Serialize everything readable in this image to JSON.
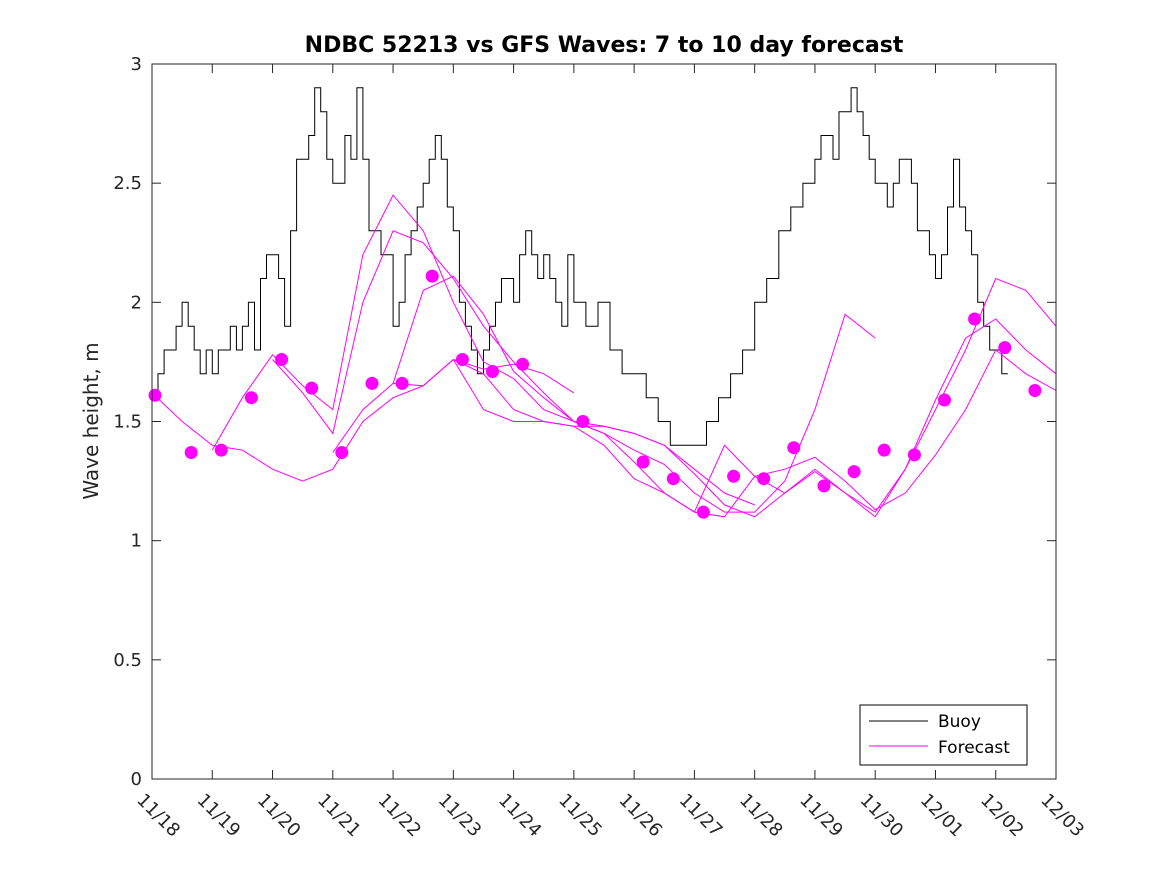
{
  "chart_data": {
    "type": "line",
    "title": "NDBC 52213 vs GFS Waves: 7 to 10 day forecast",
    "xlabel": "",
    "ylabel": "Wave height, m",
    "xlim": [
      0,
      15
    ],
    "ylim": [
      0,
      3
    ],
    "x_tick_labels": [
      "11/18",
      "11/19",
      "11/20",
      "11/21",
      "11/22",
      "11/23",
      "11/24",
      "11/25",
      "11/26",
      "11/27",
      "11/28",
      "11/29",
      "11/30",
      "12/01",
      "12/02",
      "12/03"
    ],
    "y_ticks": [
      0,
      0.5,
      1,
      1.5,
      2,
      2.5,
      3
    ],
    "y_tick_labels": [
      "0",
      "0.5",
      "1",
      "1.5",
      "2",
      "2.5",
      "3"
    ],
    "legend": {
      "position": "bottom-right",
      "entries": [
        "Buoy",
        "Forecast"
      ]
    },
    "colors": {
      "buoy": "#000000",
      "forecast": "#ff00ff"
    },
    "series": [
      {
        "name": "Buoy",
        "x": [
          0,
          0.1,
          0.2,
          0.3,
          0.4,
          0.5,
          0.6,
          0.7,
          0.8,
          0.9,
          1.0,
          1.1,
          1.2,
          1.3,
          1.4,
          1.5,
          1.6,
          1.7,
          1.8,
          1.9,
          2.0,
          2.1,
          2.2,
          2.3,
          2.4,
          2.5,
          2.6,
          2.7,
          2.8,
          2.9,
          3.0,
          3.1,
          3.2,
          3.3,
          3.4,
          3.5,
          3.6,
          3.7,
          3.8,
          3.9,
          4.0,
          4.1,
          4.2,
          4.3,
          4.4,
          4.5,
          4.6,
          4.7,
          4.8,
          4.9,
          5.0,
          5.1,
          5.2,
          5.3,
          5.4,
          5.5,
          5.6,
          5.7,
          5.8,
          5.9,
          6.0,
          6.1,
          6.2,
          6.3,
          6.4,
          6.5,
          6.6,
          6.7,
          6.8,
          6.9,
          7.0,
          7.2,
          7.4,
          7.6,
          7.8,
          8.0,
          8.2,
          8.4,
          8.6,
          8.8,
          9.0,
          9.2,
          9.4,
          9.6,
          9.8,
          10.0,
          10.2,
          10.4,
          10.6,
          10.8,
          11.0,
          11.1,
          11.2,
          11.3,
          11.4,
          11.5,
          11.6,
          11.7,
          11.8,
          11.9,
          12.0,
          12.1,
          12.2,
          12.3,
          12.4,
          12.5,
          12.6,
          12.7,
          12.8,
          12.9,
          13.0,
          13.1,
          13.2,
          13.3,
          13.4,
          13.5,
          13.6,
          13.7,
          13.8,
          13.9,
          14.0,
          14.1,
          14.2
        ],
        "values": [
          1.6,
          1.7,
          1.8,
          1.8,
          1.9,
          2.0,
          1.9,
          1.8,
          1.7,
          1.8,
          1.7,
          1.8,
          1.8,
          1.9,
          1.8,
          1.9,
          2.0,
          1.8,
          2.1,
          2.2,
          2.2,
          2.1,
          1.9,
          2.3,
          2.6,
          2.6,
          2.7,
          2.9,
          2.8,
          2.6,
          2.5,
          2.5,
          2.7,
          2.6,
          2.9,
          2.6,
          2.3,
          2.3,
          2.2,
          2.2,
          1.9,
          2.0,
          2.2,
          2.3,
          2.4,
          2.5,
          2.6,
          2.7,
          2.6,
          2.4,
          2.3,
          2.0,
          1.9,
          1.8,
          1.7,
          1.8,
          1.9,
          2.0,
          2.1,
          2.1,
          2.0,
          2.2,
          2.3,
          2.2,
          2.1,
          2.2,
          2.1,
          2.0,
          1.9,
          2.2,
          2.0,
          1.9,
          2.0,
          1.8,
          1.7,
          1.7,
          1.6,
          1.5,
          1.4,
          1.4,
          1.4,
          1.5,
          1.6,
          1.7,
          1.8,
          2.0,
          2.1,
          2.3,
          2.4,
          2.5,
          2.6,
          2.7,
          2.7,
          2.6,
          2.8,
          2.8,
          2.9,
          2.8,
          2.7,
          2.6,
          2.5,
          2.5,
          2.4,
          2.5,
          2.6,
          2.6,
          2.5,
          2.3,
          2.3,
          2.2,
          2.1,
          2.2,
          2.4,
          2.6,
          2.4,
          2.3,
          2.2,
          2.0,
          1.9,
          1.8,
          1.8,
          1.7,
          1.7
        ]
      },
      {
        "name": "Forecast",
        "x": [
          0,
          0.5,
          1,
          1.5,
          2,
          2.5,
          3,
          3.5,
          4,
          4.5,
          5,
          5.5,
          6,
          6.5,
          7
        ],
        "values": [
          1.62,
          1.5,
          1.4,
          1.38,
          1.3,
          1.25,
          1.3,
          1.5,
          1.6,
          1.65,
          1.76,
          1.72,
          1.74,
          1.7,
          1.62
        ]
      },
      {
        "name": "Forecast",
        "x": [
          1,
          1.5,
          2,
          2.5,
          3,
          3.5,
          4,
          4.5,
          5,
          5.5,
          6,
          6.5,
          7,
          7.5,
          8,
          8.5,
          9,
          9.5,
          10
        ],
        "values": [
          1.38,
          1.6,
          1.78,
          1.65,
          1.55,
          2.2,
          2.45,
          2.3,
          2.0,
          1.75,
          1.68,
          1.55,
          1.5,
          1.48,
          1.45,
          1.4,
          1.3,
          1.2,
          1.15
        ]
      },
      {
        "name": "Forecast",
        "x": [
          2,
          2.5,
          3,
          3.5,
          4,
          4.5,
          5,
          5.5,
          6,
          6.5,
          7,
          7.5,
          8,
          8.5,
          9,
          9.5,
          10,
          10.5,
          11,
          11.5,
          12
        ],
        "values": [
          1.76,
          1.62,
          1.45,
          2.0,
          2.3,
          2.25,
          2.1,
          1.9,
          1.75,
          1.62,
          1.5,
          1.45,
          1.38,
          1.32,
          1.2,
          1.12,
          1.12,
          1.25,
          1.55,
          1.95,
          1.85
        ]
      },
      {
        "name": "Forecast",
        "x": [
          3,
          3.5,
          4,
          4.5,
          5,
          5.5,
          6,
          6.5,
          7,
          7.5,
          8,
          8.5,
          9,
          9.5,
          10,
          10.5,
          11,
          11.5,
          12,
          12.5,
          13,
          13.5,
          14,
          14.5,
          15
        ],
        "values": [
          1.37,
          1.55,
          1.66,
          1.65,
          1.76,
          1.7,
          1.55,
          1.5,
          1.48,
          1.48,
          1.45,
          1.4,
          1.28,
          1.15,
          1.1,
          1.2,
          1.3,
          1.2,
          1.12,
          1.3,
          1.55,
          1.8,
          2.1,
          2.05,
          1.9
        ]
      },
      {
        "name": "Forecast",
        "x": [
          4,
          4.5,
          5,
          5.5,
          6,
          6.5,
          7,
          7.5,
          8,
          8.5,
          9,
          9.5,
          10,
          10.5,
          11,
          11.5,
          12,
          12.5,
          13,
          13.5,
          14,
          14.5,
          15
        ],
        "values": [
          1.66,
          2.05,
          2.11,
          1.95,
          1.71,
          1.6,
          1.5,
          1.45,
          1.33,
          1.2,
          1.12,
          1.1,
          1.27,
          1.3,
          1.35,
          1.25,
          1.13,
          1.2,
          1.36,
          1.55,
          1.8,
          1.7,
          1.63
        ]
      },
      {
        "name": "Forecast",
        "x": [
          5,
          5.5,
          6,
          6.5,
          7,
          7.5,
          8,
          8.5,
          9,
          9.5,
          10,
          10.5,
          11,
          11.5,
          12,
          12.5,
          13,
          13.5,
          14,
          14.5,
          15
        ],
        "values": [
          1.76,
          1.55,
          1.5,
          1.5,
          1.48,
          1.4,
          1.26,
          1.2,
          1.12,
          1.4,
          1.27,
          1.2,
          1.29,
          1.2,
          1.1,
          1.3,
          1.59,
          1.85,
          1.93,
          1.8,
          1.7
        ]
      }
    ],
    "forecast_markers": {
      "x": [
        0.05,
        0.65,
        1.15,
        1.65,
        2.15,
        2.65,
        3.15,
        3.65,
        4.15,
        4.65,
        5.15,
        5.65,
        6.15,
        7.15,
        8.15,
        8.65,
        9.15,
        9.65,
        10.15,
        10.65,
        11.15,
        11.65,
        12.15,
        12.65,
        13.15,
        13.65,
        14.15,
        14.65
      ],
      "values": [
        1.61,
        1.37,
        1.38,
        1.6,
        1.76,
        1.64,
        1.37,
        1.66,
        1.66,
        2.11,
        1.76,
        1.71,
        1.74,
        1.5,
        1.33,
        1.26,
        1.12,
        1.27,
        1.26,
        1.39,
        1.23,
        1.29,
        1.38,
        1.36,
        1.59,
        1.93,
        1.81,
        1.63
      ]
    }
  }
}
